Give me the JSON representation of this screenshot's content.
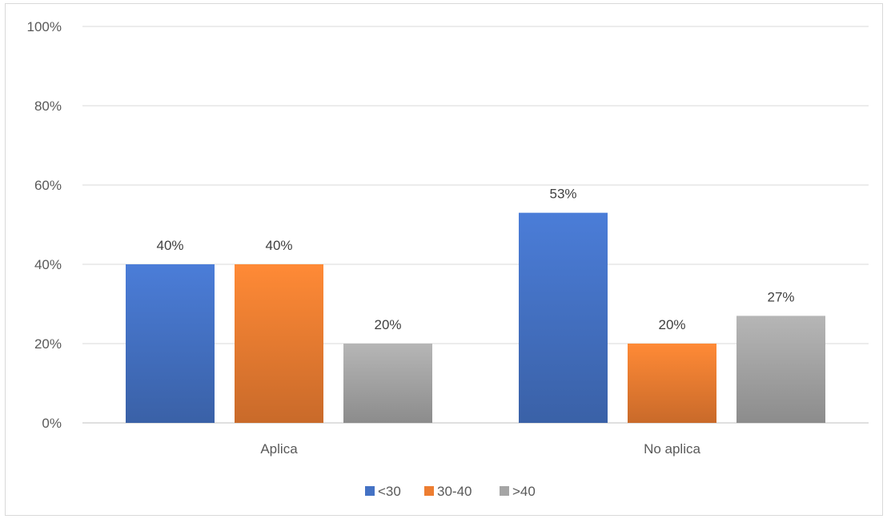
{
  "chart_data": {
    "type": "bar",
    "categories": [
      "Aplica",
      "No aplica"
    ],
    "series": [
      {
        "name": "<30",
        "values": [
          40,
          53
        ],
        "labels": [
          "40%",
          "53%"
        ],
        "color": "#4472C4"
      },
      {
        "name": "30-40",
        "values": [
          40,
          20
        ],
        "labels": [
          "40%",
          "20%"
        ],
        "color": "#ED7D31"
      },
      {
        "name": ">40",
        "values": [
          20,
          27
        ],
        "labels": [
          "20%",
          "27%"
        ],
        "color": "#A5A5A5"
      }
    ],
    "ylim": [
      0,
      100
    ],
    "yticks": [
      "0%",
      "20%",
      "40%",
      "60%",
      "80%",
      "100%"
    ],
    "grid": true,
    "legend": "bottom",
    "title": "",
    "xlabel": "",
    "ylabel": ""
  }
}
